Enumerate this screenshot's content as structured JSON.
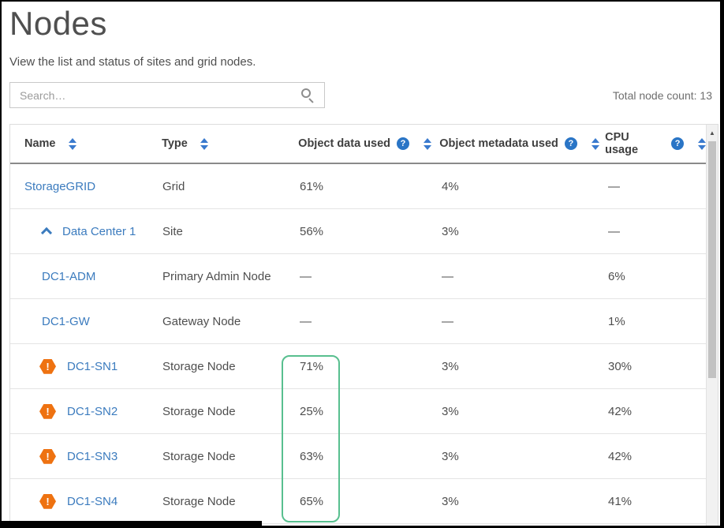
{
  "page": {
    "title": "Nodes",
    "subtitle": "View the list and status of sites and grid nodes.",
    "search_placeholder": "Search…",
    "total_count_label": "Total node count: 13"
  },
  "table": {
    "columns": [
      {
        "label": "Name"
      },
      {
        "label": "Type"
      },
      {
        "label": "Object data used"
      },
      {
        "label": "Object metadata used"
      },
      {
        "label": "CPU usage"
      }
    ],
    "help_glyph": "?",
    "warning_glyph": "!",
    "scroll_up_glyph": "▲",
    "rows": [
      {
        "name": "StorageGRID",
        "type": "Grid",
        "object_data_used": "61%",
        "object_metadata_used": "4%",
        "cpu_usage": "—"
      },
      {
        "name": "Data Center 1",
        "type": "Site",
        "object_data_used": "56%",
        "object_metadata_used": "3%",
        "cpu_usage": "—"
      },
      {
        "name": "DC1-ADM",
        "type": "Primary Admin Node",
        "object_data_used": "—",
        "object_metadata_used": "—",
        "cpu_usage": "6%"
      },
      {
        "name": "DC1-GW",
        "type": "Gateway Node",
        "object_data_used": "—",
        "object_metadata_used": "—",
        "cpu_usage": "1%"
      },
      {
        "name": "DC1-SN1",
        "type": "Storage Node",
        "object_data_used": "71%",
        "object_metadata_used": "3%",
        "cpu_usage": "30%"
      },
      {
        "name": "DC1-SN2",
        "type": "Storage Node",
        "object_data_used": "25%",
        "object_metadata_used": "3%",
        "cpu_usage": "42%"
      },
      {
        "name": "DC1-SN3",
        "type": "Storage Node",
        "object_data_used": "63%",
        "object_metadata_used": "3%",
        "cpu_usage": "42%"
      },
      {
        "name": "DC1-SN4",
        "type": "Storage Node",
        "object_data_used": "65%",
        "object_metadata_used": "3%",
        "cpu_usage": "41%"
      }
    ]
  },
  "colors": {
    "link_blue": "#3b7bbe",
    "help_icon_blue": "#2a75c6",
    "sort_arrow_blue": "#3a7ace",
    "warning_orange": "#ee7211",
    "highlight_green": "#58bf8f"
  }
}
